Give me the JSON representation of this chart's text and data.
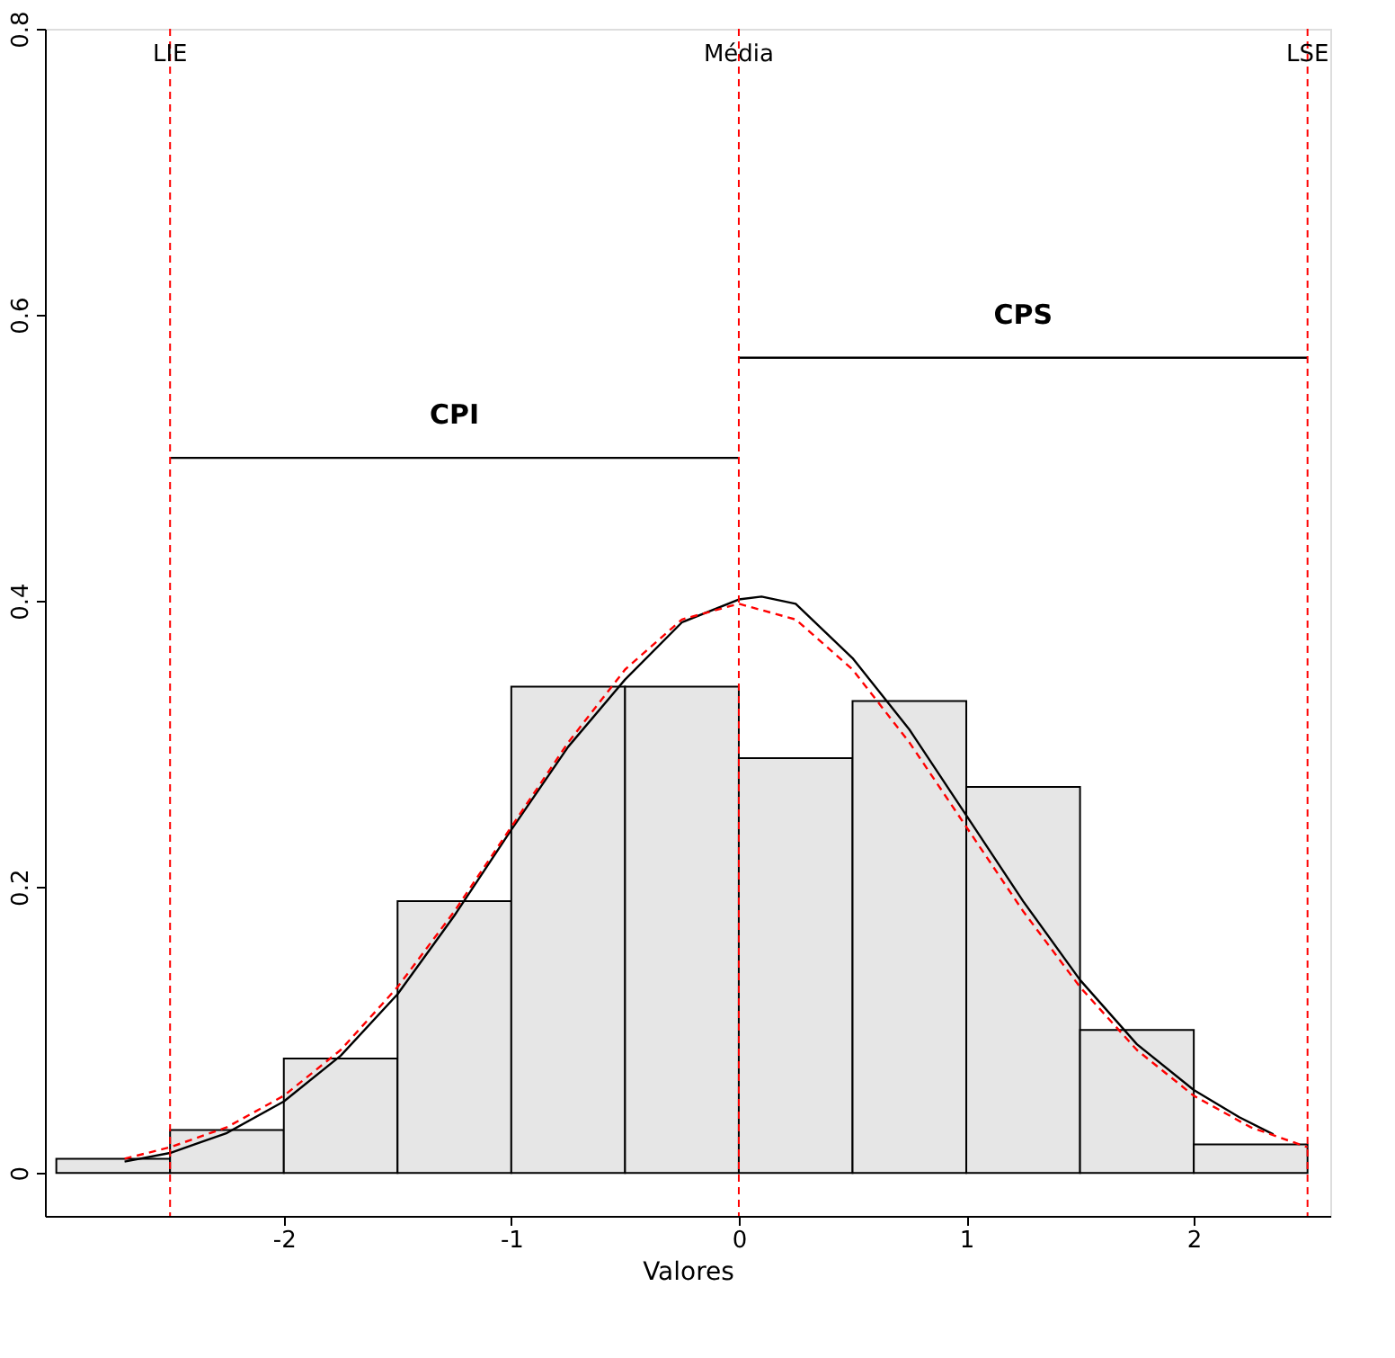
{
  "chart_data": {
    "type": "histogram",
    "xlabel": "Valores",
    "bins": [
      -3,
      -2.5,
      -2,
      -1.5,
      -1,
      -0.5,
      0,
      0.5,
      1,
      1.5,
      2,
      2.5
    ],
    "values": [
      0.01,
      0.03,
      0.08,
      0.19,
      0.34,
      0.34,
      0.29,
      0.33,
      0.27,
      0.1,
      0.02
    ],
    "color": "#e6e6e6",
    "series": [
      {
        "type": "line",
        "color": "#000000",
        "line_style": "solid",
        "x": [
          -2.7,
          -2.5,
          -2.25,
          -2,
          -1.75,
          -1.5,
          -1.25,
          -1,
          -0.75,
          -0.5,
          -0.25,
          0,
          0.1,
          0.25,
          0.5,
          0.75,
          1,
          1.25,
          1.5,
          1.75,
          2,
          2.2,
          2.35
        ],
        "values": [
          0.008,
          0.014,
          0.028,
          0.05,
          0.082,
          0.125,
          0.18,
          0.24,
          0.298,
          0.345,
          0.385,
          0.401,
          0.403,
          0.398,
          0.36,
          0.31,
          0.25,
          0.19,
          0.135,
          0.09,
          0.058,
          0.039,
          0.027
        ]
      },
      {
        "type": "line",
        "color": "#ff0000",
        "line_style": "dashed",
        "x": [
          -2.7,
          -2.5,
          -2.25,
          -2,
          -1.75,
          -1.5,
          -1.25,
          -1,
          -0.75,
          -0.5,
          -0.25,
          0,
          0.25,
          0.5,
          0.75,
          1,
          1.25,
          1.5,
          1.75,
          2,
          2.25,
          2.5
        ],
        "values": [
          0.01,
          0.018,
          0.032,
          0.054,
          0.086,
          0.13,
          0.183,
          0.242,
          0.301,
          0.352,
          0.387,
          0.398,
          0.387,
          0.352,
          0.301,
          0.242,
          0.183,
          0.13,
          0.086,
          0.054,
          0.032,
          0.018
        ]
      },
      {
        "type": "line",
        "color": "#000000",
        "line_style": "solid",
        "x": [
          -2.5,
          0
        ],
        "values": [
          0.5,
          0.5
        ]
      },
      {
        "type": "line",
        "color": "#000000",
        "line_style": "solid",
        "x": [
          0,
          2.5
        ],
        "values": [
          0.57,
          0.57
        ]
      }
    ],
    "ref_lines": [
      {
        "axis": "x",
        "value": -2.5,
        "label": "LIE",
        "color": "#ff0000",
        "line_style": "dashed"
      },
      {
        "axis": "x",
        "value": 0,
        "label": "Média",
        "color": "#ff0000",
        "line_style": "dashed"
      },
      {
        "axis": "x",
        "value": 2.5,
        "label": "LSE",
        "color": "#ff0000",
        "line_style": "dashed"
      }
    ],
    "annotations": [
      "CPI",
      "CPS"
    ],
    "xlim": [
      -3.05,
      2.6
    ],
    "ylim": [
      -0.03,
      0.8
    ],
    "xticks": [
      -2,
      -1,
      0,
      1,
      2
    ],
    "yticks": [
      0,
      0.2,
      0.4,
      0.6,
      0.8
    ],
    "grid": false
  }
}
